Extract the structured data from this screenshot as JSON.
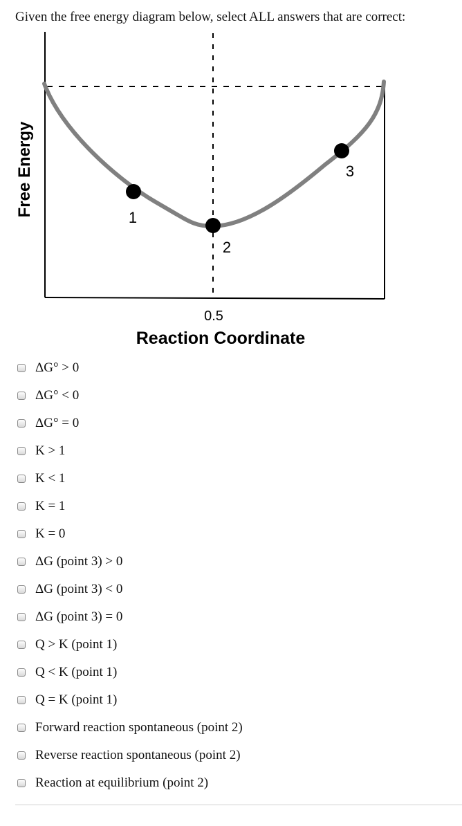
{
  "question": {
    "text": "Given the free energy diagram below, select ALL answers that are correct:"
  },
  "diagram": {
    "y_axis_label": "Free Energy",
    "x_axis_label": "Reaction Coordinate",
    "x_tick_label": "0.5",
    "curve_color": "#808080",
    "points": [
      {
        "label": "1"
      },
      {
        "label": "2"
      },
      {
        "label": "3"
      }
    ]
  },
  "options": [
    {
      "label": "ΔG° > 0"
    },
    {
      "label": "ΔG° < 0"
    },
    {
      "label": "ΔG° = 0"
    },
    {
      "label": "K > 1"
    },
    {
      "label": "K < 1"
    },
    {
      "label": "K = 1"
    },
    {
      "label": "K = 0"
    },
    {
      "label": "ΔG (point 3) > 0"
    },
    {
      "label": "ΔG (point 3) < 0"
    },
    {
      "label": "ΔG (point 3) = 0"
    },
    {
      "label": "Q > K (point 1)"
    },
    {
      "label": "Q < K (point 1)"
    },
    {
      "label": "Q = K (point 1)"
    },
    {
      "label": "Forward reaction spontaneous (point 2)"
    },
    {
      "label": "Reverse reaction spontaneous (point 2)"
    },
    {
      "label": "Reaction at equilibrium (point 2)"
    }
  ]
}
